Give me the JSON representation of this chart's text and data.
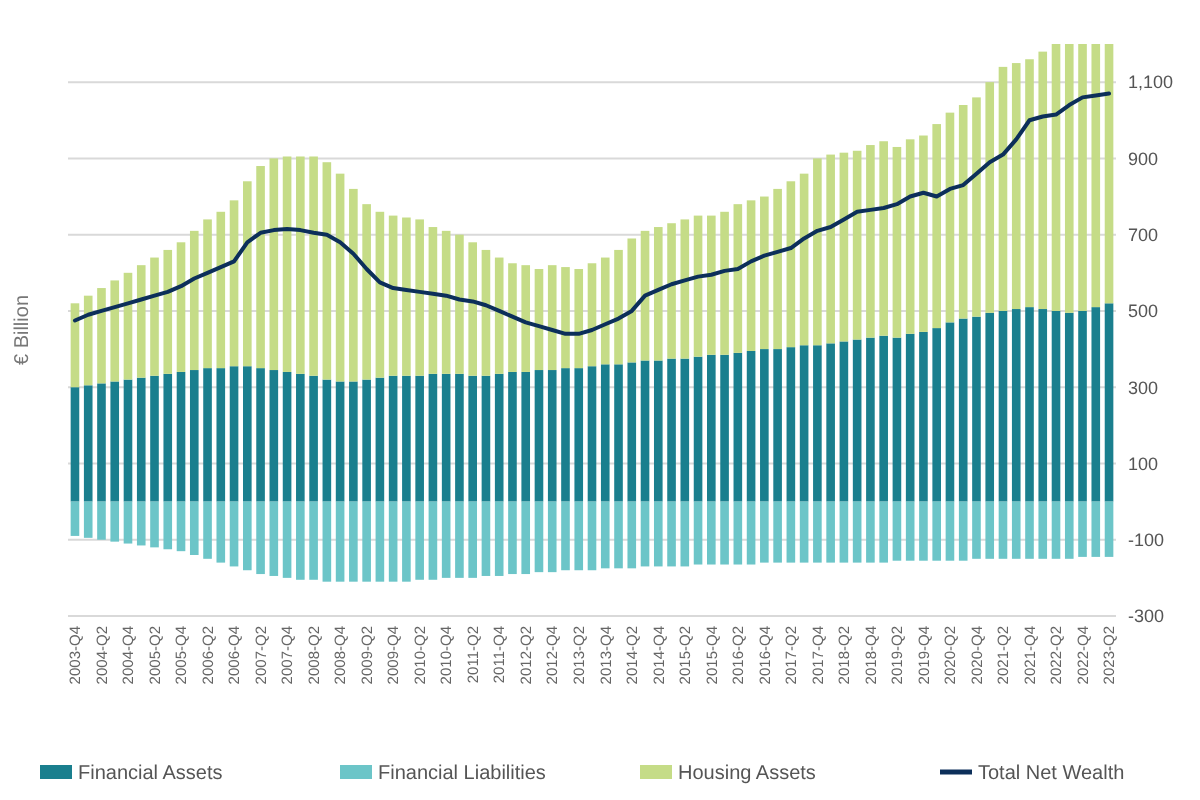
{
  "chart_data": {
    "type": "bar",
    "stacked": true,
    "ylabel": "€ Billion",
    "categories": [
      "2003-Q4",
      null,
      "2004-Q2",
      null,
      "2004-Q4",
      null,
      "2005-Q2",
      null,
      "2005-Q4",
      null,
      "2006-Q2",
      null,
      "2006-Q4",
      null,
      "2007-Q2",
      null,
      "2007-Q4",
      null,
      "2008-Q2",
      null,
      "2008-Q4",
      null,
      "2009-Q2",
      null,
      "2009-Q4",
      null,
      "2010-Q2",
      null,
      "2010-Q4",
      null,
      "2011-Q2",
      null,
      "2011-Q4",
      null,
      "2012-Q2",
      null,
      "2012-Q4",
      null,
      "2013-Q2",
      null,
      "2013-Q4",
      null,
      "2014-Q2",
      null,
      "2014-Q4",
      null,
      "2015-Q2",
      null,
      "2015-Q4",
      null,
      "2016-Q2",
      null,
      "2016-Q4",
      null,
      "2017-Q2",
      null,
      "2017-Q4",
      null,
      "2018-Q2",
      null,
      "2018-Q4",
      null,
      "2019-Q2",
      null,
      "2019-Q4",
      null,
      "2020-Q2",
      null,
      "2020-Q4",
      null,
      "2021-Q2",
      null,
      "2021-Q4",
      null,
      "2022-Q2",
      null,
      "2022-Q4",
      null,
      "2023-Q2"
    ],
    "series": [
      {
        "name": "Financial Assets",
        "color": "#1a7f8e",
        "values": [
          300,
          305,
          310,
          315,
          320,
          325,
          330,
          335,
          340,
          345,
          350,
          350,
          355,
          355,
          350,
          345,
          340,
          335,
          330,
          320,
          315,
          315,
          320,
          325,
          330,
          330,
          330,
          335,
          335,
          335,
          330,
          330,
          335,
          340,
          340,
          345,
          345,
          350,
          350,
          355,
          360,
          360,
          365,
          370,
          370,
          375,
          375,
          380,
          385,
          385,
          390,
          395,
          400,
          400,
          405,
          410,
          410,
          415,
          420,
          425,
          430,
          435,
          430,
          440,
          445,
          455,
          470,
          480,
          485,
          495,
          500,
          505,
          510,
          505,
          500,
          495,
          500,
          510,
          520
        ]
      },
      {
        "name": "Financial Liabilities",
        "color": "#6cc5c8",
        "values": [
          -90,
          -95,
          -100,
          -105,
          -110,
          -115,
          -120,
          -125,
          -130,
          -140,
          -150,
          -160,
          -170,
          -180,
          -190,
          -195,
          -200,
          -205,
          -205,
          -210,
          -210,
          -210,
          -210,
          -210,
          -210,
          -210,
          -205,
          -205,
          -200,
          -200,
          -200,
          -195,
          -195,
          -190,
          -190,
          -185,
          -185,
          -180,
          -180,
          -180,
          -175,
          -175,
          -175,
          -170,
          -170,
          -170,
          -170,
          -165,
          -165,
          -165,
          -165,
          -165,
          -160,
          -160,
          -160,
          -160,
          -160,
          -160,
          -160,
          -160,
          -160,
          -160,
          -155,
          -155,
          -155,
          -155,
          -155,
          -155,
          -150,
          -150,
          -150,
          -150,
          -150,
          -150,
          -150,
          -150,
          -145,
          -145,
          -145
        ]
      },
      {
        "name": "Housing Assets",
        "color": "#c5dc87",
        "values": [
          220,
          235,
          250,
          265,
          280,
          295,
          310,
          325,
          340,
          365,
          390,
          410,
          435,
          485,
          530,
          555,
          565,
          570,
          575,
          570,
          545,
          505,
          460,
          435,
          420,
          415,
          410,
          385,
          375,
          365,
          350,
          330,
          305,
          285,
          280,
          265,
          275,
          265,
          260,
          270,
          280,
          300,
          325,
          340,
          350,
          355,
          365,
          370,
          365,
          375,
          390,
          395,
          400,
          420,
          435,
          450,
          490,
          495,
          495,
          495,
          505,
          510,
          500,
          510,
          515,
          535,
          550,
          560,
          575,
          605,
          640,
          645,
          650,
          675,
          700,
          705,
          700,
          690,
          680
        ]
      },
      {
        "name": "Total Net Wealth",
        "type": "line",
        "color": "#0c2f5a",
        "values": [
          475,
          490,
          500,
          510,
          520,
          530,
          540,
          550,
          565,
          585,
          600,
          615,
          630,
          680,
          705,
          712,
          715,
          712,
          705,
          700,
          680,
          650,
          610,
          575,
          560,
          555,
          550,
          545,
          540,
          530,
          525,
          515,
          500,
          485,
          470,
          460,
          450,
          440,
          440,
          450,
          465,
          480,
          500,
          540,
          555,
          570,
          580,
          590,
          595,
          605,
          610,
          630,
          645,
          655,
          665,
          690,
          710,
          720,
          740,
          760,
          765,
          770,
          780,
          800,
          810,
          800,
          820,
          830,
          860,
          890,
          910,
          950,
          1000,
          1010,
          1015,
          1040,
          1060,
          1065,
          1070
        ]
      }
    ],
    "ylim": [
      -300,
      1200
    ],
    "yticks": [
      {
        "value": -300,
        "label": "-300"
      },
      {
        "value": -100,
        "label": "-100"
      },
      {
        "value": 100,
        "label": "100"
      },
      {
        "value": 300,
        "label": "300"
      },
      {
        "value": 500,
        "label": "500"
      },
      {
        "value": 700,
        "label": "700"
      },
      {
        "value": 900,
        "label": "900"
      },
      {
        "value": 1100,
        "label": "1,100"
      }
    ],
    "grid": "y",
    "legend": "bottom",
    "line_style": "solid",
    "marker": "none"
  }
}
